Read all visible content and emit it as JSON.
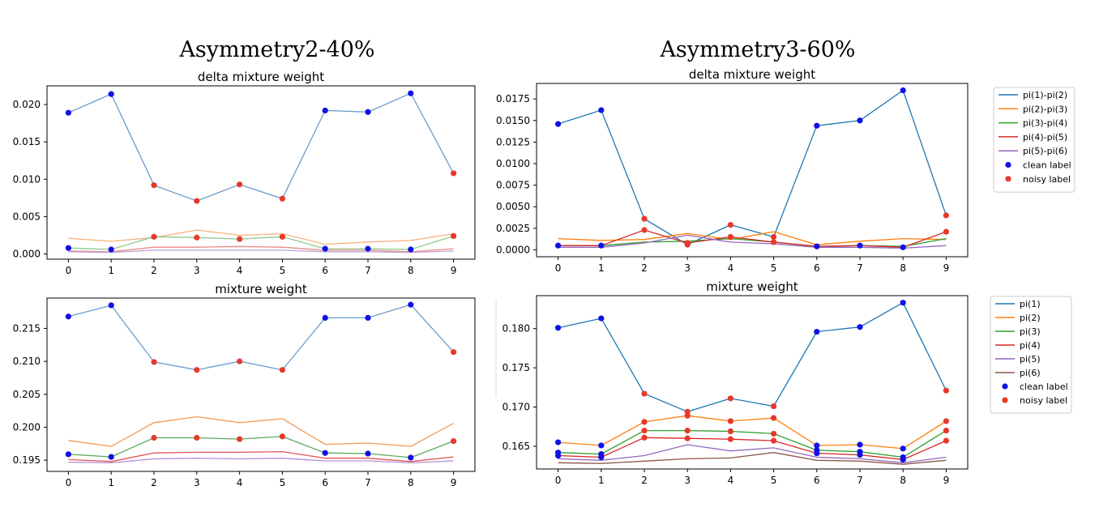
{
  "panels": [
    {
      "title": "Asymmetry2-40%",
      "charts": [
        {
          "title": "delta mixture weight",
          "type": "line",
          "x": [
            0,
            1,
            2,
            3,
            4,
            5,
            6,
            7,
            8,
            9
          ],
          "ylim": [
            -0.0007,
            0.0225
          ],
          "yticks": [
            "0.000",
            "0.005",
            "0.010",
            "0.015",
            "0.020"
          ],
          "ytick_values": [
            0,
            0.005,
            0.01,
            0.015,
            0.02
          ],
          "series": [
            {
              "color": "#6a9dcc",
              "values": [
                0.0189,
                0.0214,
                0.0092,
                0.0071,
                0.0093,
                0.0074,
                0.0192,
                0.019,
                0.0215,
                0.0108
              ]
            },
            {
              "color": "#f7b07e",
              "values": [
                0.0021,
                0.0017,
                0.0022,
                0.0032,
                0.0025,
                0.0027,
                0.0013,
                0.0016,
                0.0018,
                0.0027
              ]
            },
            {
              "color": "#8fc98f",
              "values": [
                0.0008,
                0.0006,
                0.0023,
                0.0022,
                0.002,
                0.0023,
                0.0007,
                0.0007,
                0.0006,
                0.0024
              ]
            },
            {
              "color": "#e98a8a",
              "values": [
                0.0004,
                0.0003,
                0.0009,
                0.0009,
                0.001,
                0.0009,
                0.0005,
                0.0005,
                0.0003,
                0.0007
              ]
            },
            {
              "color": "#b9a6d6",
              "values": [
                0.0003,
                0.0002,
                0.0005,
                0.0005,
                0.0005,
                0.0005,
                0.0003,
                0.0003,
                0.0002,
                0.0004
              ]
            }
          ],
          "markers": {
            "clean_idx": [
              0,
              1,
              6,
              7,
              8
            ],
            "noisy_idx": [
              2,
              3,
              4,
              5,
              9
            ]
          },
          "legend": null
        },
        {
          "title": "mixture weight",
          "type": "line",
          "x": [
            0,
            1,
            2,
            3,
            4,
            5,
            6,
            7,
            8,
            9
          ],
          "ylim": [
            0.1933,
            0.2196
          ],
          "yticks": [
            "0.195",
            "0.200",
            "0.205",
            "0.210",
            "0.215"
          ],
          "ytick_values": [
            0.195,
            0.2,
            0.205,
            0.21,
            0.215
          ],
          "series": [
            {
              "color": "#6a9dcc",
              "values": [
                0.2168,
                0.2185,
                0.2099,
                0.2087,
                0.21,
                0.2087,
                0.2166,
                0.2166,
                0.2186,
                0.2114
              ]
            },
            {
              "color": "#f59a55",
              "values": [
                0.198,
                0.1971,
                0.2007,
                0.2016,
                0.2007,
                0.2013,
                0.1974,
                0.1976,
                0.1971,
                0.2006
              ]
            },
            {
              "color": "#5aaa5a",
              "values": [
                0.1959,
                0.1955,
                0.1984,
                0.1984,
                0.1982,
                0.1986,
                0.1961,
                0.196,
                0.1954,
                0.1979
              ]
            },
            {
              "color": "#e05555",
              "values": [
                0.1951,
                0.1948,
                0.1961,
                0.1962,
                0.1962,
                0.1963,
                0.1953,
                0.1953,
                0.1948,
                0.1955
              ]
            },
            {
              "color": "#b48fd4",
              "values": [
                0.1947,
                0.1946,
                0.1952,
                0.1953,
                0.1952,
                0.1953,
                0.1949,
                0.1949,
                0.1946,
                0.1949
              ]
            }
          ],
          "markers": {
            "clean_idx": [
              0,
              1,
              6,
              7,
              8
            ],
            "noisy_idx": [
              2,
              3,
              4,
              5,
              9
            ]
          },
          "legend": null
        }
      ]
    },
    {
      "title": "Asymmetry3-60%",
      "charts": [
        {
          "title": "delta mixture weight",
          "type": "line",
          "x": [
            0,
            1,
            2,
            3,
            4,
            5,
            6,
            7,
            8,
            9
          ],
          "ylim": [
            -0.0008,
            0.0193
          ],
          "yticks": [
            "0.0000",
            "0.0025",
            "0.0050",
            "0.0075",
            "0.0100",
            "0.0125",
            "0.0150",
            "0.0175"
          ],
          "ytick_values": [
            0,
            0.0025,
            0.005,
            0.0075,
            0.01,
            0.0125,
            0.015,
            0.0175
          ],
          "series": [
            {
              "name": "pi(1)-pi(2)",
              "color": "#1f77b4",
              "values": [
                0.0146,
                0.0162,
                0.0036,
                0.0006,
                0.0029,
                0.0015,
                0.0144,
                0.015,
                0.0185,
                0.004
              ]
            },
            {
              "name": "pi(2)-pi(3)",
              "color": "#ff7f0e",
              "values": [
                0.0013,
                0.0011,
                0.0012,
                0.0019,
                0.0012,
                0.0021,
                0.0006,
                0.001,
                0.0013,
                0.0012
              ]
            },
            {
              "name": "pi(3)-pi(4)",
              "color": "#2ca02c",
              "values": [
                0.0005,
                0.0005,
                0.0009,
                0.001,
                0.0013,
                0.0009,
                0.0004,
                0.0005,
                0.0004,
                0.0013
              ]
            },
            {
              "name": "pi(4)-pi(5)",
              "color": "#d62728",
              "values": [
                0.0005,
                0.0005,
                0.0023,
                0.0008,
                0.0015,
                0.0009,
                0.0004,
                0.0005,
                0.0003,
                0.0021
              ]
            },
            {
              "name": "pi(5)-pi(6)",
              "color": "#9467bd",
              "values": [
                0.0003,
                0.0003,
                0.0008,
                0.0017,
                0.0009,
                0.0007,
                0.0003,
                0.0003,
                0.0002,
                0.0005
              ]
            }
          ],
          "markers": {
            "clean_idx": [
              0,
              1,
              6,
              7,
              8
            ],
            "noisy_idx": [
              2,
              3,
              4,
              5,
              9
            ]
          },
          "legend": {
            "labels": [
              "pi(1)-pi(2)",
              "pi(2)-pi(3)",
              "pi(3)-pi(4)",
              "pi(4)-pi(5)",
              "pi(5)-pi(6)",
              "clean label",
              "noisy label"
            ]
          }
        },
        {
          "title": "mixture weight",
          "type": "line",
          "x": [
            0,
            1,
            2,
            3,
            4,
            5,
            6,
            7,
            8,
            9
          ],
          "ylim": [
            0.1621,
            0.1842
          ],
          "yticks": [
            "0.165",
            "0.170",
            "0.175",
            "0.180"
          ],
          "ytick_values": [
            0.165,
            0.17,
            0.175,
            0.18
          ],
          "series": [
            {
              "name": "pi(1)",
              "color": "#1f77b4",
              "values": [
                0.1801,
                0.1813,
                0.1717,
                0.1694,
                0.1711,
                0.1701,
                0.1796,
                0.1802,
                0.1833,
                0.1721
              ]
            },
            {
              "name": "pi(2)",
              "color": "#ff7f0e",
              "values": [
                0.1655,
                0.1651,
                0.1681,
                0.1689,
                0.1682,
                0.1686,
                0.1651,
                0.1652,
                0.1647,
                0.1682
              ]
            },
            {
              "name": "pi(3)",
              "color": "#2ca02c",
              "values": [
                0.1642,
                0.164,
                0.167,
                0.167,
                0.1669,
                0.1666,
                0.1645,
                0.1643,
                0.1636,
                0.167
              ]
            },
            {
              "name": "pi(4)",
              "color": "#d62728",
              "values": [
                0.1638,
                0.1636,
                0.1661,
                0.166,
                0.1659,
                0.1657,
                0.1641,
                0.1639,
                0.1633,
                0.1657
              ]
            },
            {
              "name": "pi(5)",
              "color": "#9467bd",
              "values": [
                0.1634,
                0.1632,
                0.1638,
                0.1652,
                0.1644,
                0.1648,
                0.1636,
                0.1634,
                0.1629,
                0.1636
              ]
            },
            {
              "name": "pi(6)",
              "color": "#8c564b",
              "values": [
                0.1629,
                0.1628,
                0.1631,
                0.1634,
                0.1635,
                0.1642,
                0.1632,
                0.1631,
                0.1627,
                0.1632
              ]
            }
          ],
          "markers": {
            "clean_idx": [
              0,
              1,
              6,
              7,
              8
            ],
            "noisy_idx": [
              2,
              3,
              4,
              5,
              9
            ]
          },
          "legend": {
            "labels": [
              "pi(1)",
              "pi(2)",
              "pi(3)",
              "pi(4)",
              "pi(5)",
              "pi(6)",
              "clean label",
              "noisy label"
            ]
          }
        }
      ]
    }
  ],
  "marker_colors": {
    "clean": "#1010e8",
    "noisy": "#e8382c"
  }
}
